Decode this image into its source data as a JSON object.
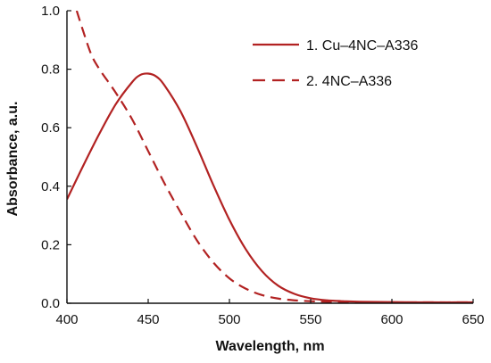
{
  "chart_data": {
    "type": "line",
    "xlabel": "Wavelength, nm",
    "ylabel": "Absorbance, a.u.",
    "xlim": [
      400,
      650
    ],
    "ylim": [
      0.0,
      1.0
    ],
    "x_ticks": [
      400,
      450,
      500,
      550,
      600,
      650
    ],
    "x_tick_labels": [
      "400",
      "450",
      "500",
      "550",
      "600",
      "650"
    ],
    "y_ticks": [
      0.0,
      0.2,
      0.4,
      0.6,
      0.8,
      1.0
    ],
    "y_tick_labels": [
      "0.0",
      "0.2",
      "0.4",
      "0.6",
      "0.8",
      "1.0"
    ],
    "grid": false,
    "legend_position": "top-right",
    "series": [
      {
        "name": "1. Cu–4NC–A336",
        "line_style": "solid",
        "color": "#b22222",
        "x": [
          400,
          410,
          420,
          430,
          440,
          445,
          450,
          455,
          460,
          470,
          480,
          490,
          500,
          510,
          520,
          530,
          540,
          550,
          560,
          570,
          580,
          600,
          625,
          650
        ],
        "y": [
          0.355,
          0.47,
          0.58,
          0.68,
          0.755,
          0.78,
          0.785,
          0.775,
          0.745,
          0.655,
          0.535,
          0.405,
          0.285,
          0.185,
          0.11,
          0.06,
          0.032,
          0.017,
          0.01,
          0.007,
          0.005,
          0.004,
          0.003,
          0.003
        ]
      },
      {
        "name": "2. 4NC–A336",
        "line_style": "dashed",
        "color": "#b22222",
        "x": [
          406,
          410,
          415,
          420,
          430,
          440,
          450,
          460,
          470,
          480,
          490,
          500,
          510,
          520,
          530,
          540,
          550,
          560,
          580,
          600,
          625,
          650
        ],
        "y": [
          1.0,
          0.93,
          0.85,
          0.8,
          0.72,
          0.63,
          0.52,
          0.41,
          0.31,
          0.215,
          0.14,
          0.085,
          0.05,
          0.028,
          0.016,
          0.01,
          0.007,
          0.005,
          0.004,
          0.003,
          0.003,
          0.003
        ]
      }
    ]
  }
}
